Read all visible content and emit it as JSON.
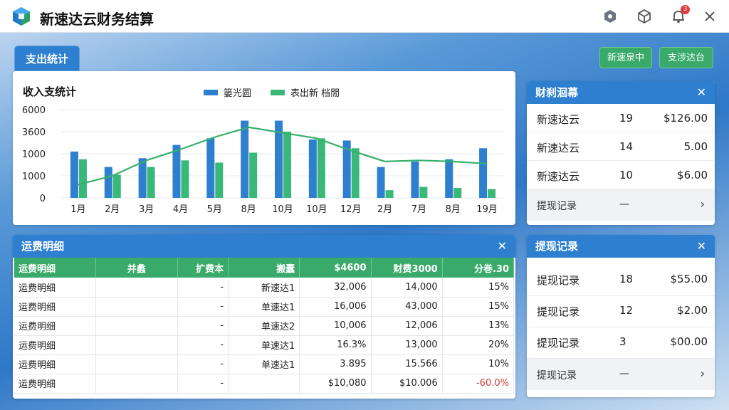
{
  "app": {
    "title": "新速达云财务结算",
    "notification_count": "3",
    "icons": [
      "settings-hex-icon",
      "cube-icon",
      "bell-icon",
      "close-icon"
    ]
  },
  "section_tab": "支出统计",
  "top_buttons": [
    "新速泉中",
    "支涉达台"
  ],
  "chart": {
    "title": "收入支统计",
    "legend": [
      "篓光圆",
      "表出新 档閒"
    ]
  },
  "chart_data": {
    "type": "bar",
    "categories": [
      "1月",
      "2月",
      "3月",
      "4月",
      "5月",
      "8月",
      "10月",
      "10月",
      "12月",
      "2月",
      "7月",
      "8月",
      "19月"
    ],
    "ytick_labels": [
      "0",
      "1000",
      "1000",
      "3600",
      "6000"
    ],
    "series": [
      {
        "name": "篓光圆",
        "values": [
          2100,
          1400,
          1800,
          2400,
          2700,
          3500,
          3500,
          2650,
          2600,
          1400,
          1650,
          1750,
          2250
        ]
      },
      {
        "name": "表出新 档閒",
        "values": [
          1750,
          1050,
          1400,
          1700,
          1600,
          2050,
          3000,
          2700,
          2250,
          350,
          500,
          450,
          400
        ]
      },
      {
        "type": "line",
        "values": [
          600,
          1000,
          1700,
          2200,
          2750,
          3200,
          2950,
          2700,
          2150,
          1650,
          1700,
          1650,
          1550
        ]
      }
    ],
    "ylim": [
      0,
      4000
    ],
    "grid": true,
    "legend_position": "top"
  },
  "colors": {
    "blue": "#2f7fd0",
    "green": "#3ab878",
    "line": "#35b06a",
    "header_blue": "#2e7fd0",
    "header_green": "#3aaa6a"
  },
  "card1": {
    "title": "财刹洄幕",
    "rows": [
      {
        "name": "新速达云",
        "count": "19",
        "amount": "$126.00"
      },
      {
        "name": "新速达云",
        "count": "14",
        "amount": "5.00"
      },
      {
        "name": "新速达云",
        "count": "10",
        "amount": "$6.00"
      }
    ],
    "footer": {
      "label": "提现记录",
      "dash": "—"
    }
  },
  "card2": {
    "title": "提现记录",
    "rows": [
      {
        "name": "提现记录",
        "count": "18",
        "amount": "$55.00"
      },
      {
        "name": "提现记录",
        "count": "12",
        "amount": "$2.00"
      },
      {
        "name": "提现记录",
        "count": "3",
        "amount": "$00.00"
      }
    ],
    "footer": {
      "label": "提现记录",
      "dash": "—"
    }
  },
  "table": {
    "title": "运费明细",
    "headers": [
      "运费明细",
      "并蠡",
      "扩费本",
      "搬蠹",
      "$4600",
      "财费3000",
      "分巻.30"
    ],
    "rows": [
      [
        "运费明细",
        "",
        "-",
        "新速达1",
        "32,006",
        "14,000",
        "15%"
      ],
      [
        "运费明细",
        "",
        "-",
        "单速达1",
        "16,006",
        "43,000",
        "15%"
      ],
      [
        "运费明细",
        "",
        "-",
        "单速达2",
        "10,006",
        "12,006",
        "13%"
      ],
      [
        "运费明细",
        "",
        "-",
        "单速达1",
        "16.3%",
        "13,000",
        "20%"
      ],
      [
        "运费明细",
        "",
        "-",
        "单速达1",
        "3.895",
        "15.566",
        "10%"
      ],
      [
        "运费明细",
        "",
        "-",
        "",
        "$10,080",
        "$10.006",
        "-60.0%"
      ]
    ]
  }
}
